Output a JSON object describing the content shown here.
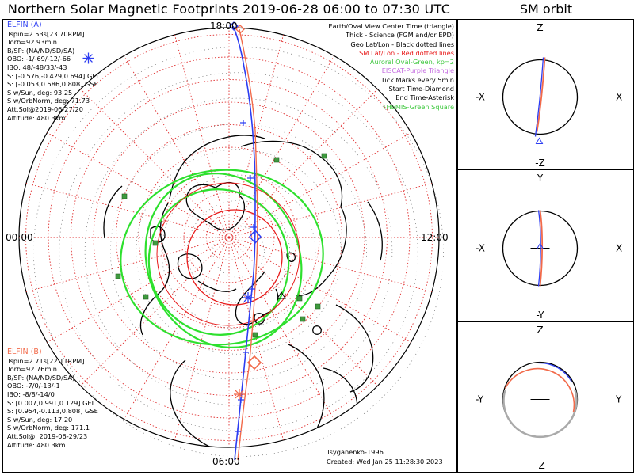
{
  "title": "Northern Solar Magnetic Footprints 2019-06-28 06:00 to 07:30 UTC",
  "sm_title": "SM orbit",
  "colors": {
    "elfin_a": "#2c3df2",
    "elfin_b": "#f26a4a",
    "oval": "#2ee02e",
    "sm_latlon": "#e81b1b",
    "eiscat": "#c43fe0",
    "station": "#3f9a3f",
    "grid": "#e03030",
    "green_text": "#3ec83e",
    "purple_text": "#c46ce0"
  },
  "elfin_a": {
    "name": "ELFIN (A)",
    "lines": [
      "Tspin=2.53s[23.70RPM]",
      "Torb=92.93min",
      "B/SP: (NA/ND/SD/SA)",
      "OBO: -1/-69/-12/-66",
      "IBO: 48/-48/33/-43",
      "S: [-0.576,-0.429,0.694] GEI",
      "S: [-0.053,0.586,0.808] GSE",
      "S w/Sun, deg: 93.25",
      "S w/OrbNorm, deg: 71.73",
      "Att.Sol@2019-06-27/20",
      "Altitude: 480.3km"
    ]
  },
  "elfin_b": {
    "name": "ELFIN (B)",
    "lines": [
      "Tspin=2.71s[22.11RPM]",
      "Torb=92.76min",
      "B/SP: (NA/ND/SD/SA)",
      "OBO: -7/0/-13/-1",
      "IBO: -8/8/-14/0",
      "S: [0.007,0.991,0.129] GEI",
      "S: [0.954,-0.113,0.808] GSE",
      "S w/Sun, deg: 17.20",
      "S w/OrbNorm, deg: 171.1",
      "Att.Sol@: 2019-06-29/23",
      "Altitude: 480.3km"
    ]
  },
  "legend": [
    {
      "text": "Earth/Oval View Center Time (triangle)",
      "color": "#000000"
    },
    {
      "text": "Thick - Science (FGM and/or EPD)",
      "color": "#000000"
    },
    {
      "text": "Geo Lat/Lon - Black dotted lines",
      "color": "#000000"
    },
    {
      "text": "SM Lat/Lon - Red dotted lines",
      "color": "#e81b1b"
    },
    {
      "text": "Auroral Oval-Green, kp=2",
      "color": "#3ec83e"
    },
    {
      "text": "EISCAT-Purple Triangle",
      "color": "#c46ce0"
    },
    {
      "text": "Tick Marks every 5min",
      "color": "#000000"
    },
    {
      "text": "Start Time-Diamond",
      "color": "#000000"
    },
    {
      "text": "End Time-Asterisk",
      "color": "#000000"
    },
    {
      "text": "THEMIS-Green Square",
      "color": "#3ec83e"
    }
  ],
  "mlt_labels": {
    "top": "18:00",
    "left": "00:00",
    "right": "12:00",
    "bottom": "06:00"
  },
  "footer": {
    "author": "Tsyganenko-1996",
    "created": "Created: Wed Jan 25 11:28:30 2023"
  },
  "sm_panels": [
    {
      "top": "Z",
      "bottom": "-Z",
      "left": "-X",
      "right": "X"
    },
    {
      "top": "Y",
      "bottom": "-Y",
      "left": "-X",
      "right": "X"
    },
    {
      "top": "Z",
      "bottom": "-Z",
      "left": "-Y",
      "right": "Y"
    }
  ],
  "chart_data": {
    "type": "polar-map",
    "projection": "northern SM polar view",
    "grid": true,
    "series": [
      {
        "name": "ELFIN (A)",
        "color": "#2c3df2",
        "start_marker": "diamond",
        "end_marker": "asterisk"
      },
      {
        "name": "ELFIN (B)",
        "color": "#f26a4a",
        "start_marker": "diamond",
        "end_marker": "asterisk"
      }
    ],
    "auroral_oval_kp": 2
  }
}
